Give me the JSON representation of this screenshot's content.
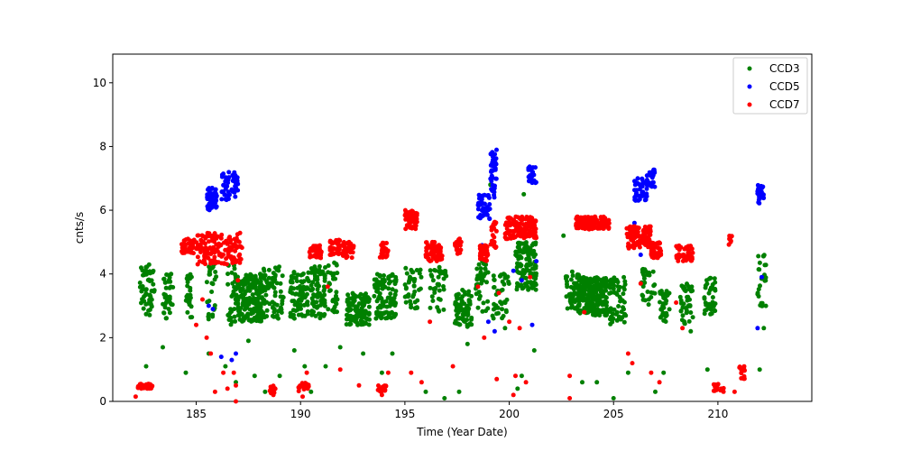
{
  "chart_data": {
    "type": "scatter",
    "title": "",
    "xlabel": "Time (Year Date)",
    "ylabel": "cnts/s",
    "xlim": [
      181,
      214.5
    ],
    "ylim": [
      0,
      10.9
    ],
    "xticks": [
      185,
      190,
      195,
      200,
      205,
      210
    ],
    "yticks": [
      0,
      2,
      4,
      6,
      8,
      10
    ],
    "grid": false,
    "legend_position": "top-right",
    "series": [
      {
        "name": "CCD3",
        "color": "#008000",
        "clusters": [
          {
            "x": [
              182.3,
              183.0
            ],
            "y": [
              2.7,
              4.3
            ],
            "n": 55
          },
          {
            "x": [
              183.4,
              183.9
            ],
            "y": [
              2.6,
              4.0
            ],
            "n": 35
          },
          {
            "x": [
              184.5,
              184.8
            ],
            "y": [
              2.6,
              4.0
            ],
            "n": 25
          },
          {
            "x": [
              185.5,
              186.0
            ],
            "y": [
              2.5,
              4.4
            ],
            "n": 25
          },
          {
            "x": [
              186.5,
              187.0
            ],
            "y": [
              2.4,
              4.3
            ],
            "n": 40
          },
          {
            "x": [
              187.0,
              188.2
            ],
            "y": [
              2.5,
              4.0
            ],
            "n": 180
          },
          {
            "x": [
              188.2,
              189.2
            ],
            "y": [
              2.6,
              4.3
            ],
            "n": 70
          },
          {
            "x": [
              189.5,
              190.4
            ],
            "y": [
              2.6,
              4.1
            ],
            "n": 80
          },
          {
            "x": [
              190.5,
              191.2
            ],
            "y": [
              2.6,
              4.3
            ],
            "n": 80
          },
          {
            "x": [
              191.3,
              191.8
            ],
            "y": [
              2.8,
              4.4
            ],
            "n": 30
          },
          {
            "x": [
              192.2,
              193.3
            ],
            "y": [
              2.4,
              3.4
            ],
            "n": 130
          },
          {
            "x": [
              193.5,
              194.6
            ],
            "y": [
              2.6,
              4.0
            ],
            "n": 110
          },
          {
            "x": [
              195.0,
              195.8
            ],
            "y": [
              2.9,
              4.2
            ],
            "n": 40
          },
          {
            "x": [
              196.2,
              197.0
            ],
            "y": [
              2.8,
              4.3
            ],
            "n": 40
          },
          {
            "x": [
              197.4,
              198.2
            ],
            "y": [
              2.3,
              3.5
            ],
            "n": 80
          },
          {
            "x": [
              198.4,
              199.0
            ],
            "y": [
              2.8,
              4.4
            ],
            "n": 40
          },
          {
            "x": [
              199.2,
              200.0
            ],
            "y": [
              2.6,
              4.0
            ],
            "n": 40
          },
          {
            "x": [
              200.3,
              201.3
            ],
            "y": [
              3.5,
              5.0
            ],
            "n": 120
          },
          {
            "x": [
              202.7,
              203.4
            ],
            "y": [
              2.8,
              4.1
            ],
            "n": 60
          },
          {
            "x": [
              203.3,
              204.7
            ],
            "y": [
              2.7,
              3.9
            ],
            "n": 220
          },
          {
            "x": [
              204.8,
              205.6
            ],
            "y": [
              2.4,
              3.9
            ],
            "n": 60
          },
          {
            "x": [
              206.3,
              207.0
            ],
            "y": [
              3.0,
              4.2
            ],
            "n": 30
          },
          {
            "x": [
              207.2,
              207.7
            ],
            "y": [
              2.5,
              3.5
            ],
            "n": 35
          },
          {
            "x": [
              208.2,
              208.8
            ],
            "y": [
              2.4,
              3.7
            ],
            "n": 40
          },
          {
            "x": [
              209.3,
              209.9
            ],
            "y": [
              2.7,
              3.9
            ],
            "n": 40
          },
          {
            "x": [
              211.9,
              212.3
            ],
            "y": [
              2.9,
              4.6
            ],
            "n": 25
          }
        ],
        "points": [
          [
            182.6,
            1.1
          ],
          [
            183.4,
            1.7
          ],
          [
            184.5,
            0.9
          ],
          [
            185.6,
            1.5
          ],
          [
            186.4,
            1.1
          ],
          [
            186.9,
            0.6
          ],
          [
            187.5,
            1.9
          ],
          [
            187.8,
            0.8
          ],
          [
            188.3,
            0.3
          ],
          [
            189.0,
            0.8
          ],
          [
            189.7,
            1.6
          ],
          [
            190.2,
            1.1
          ],
          [
            190.5,
            0.3
          ],
          [
            191.2,
            1.1
          ],
          [
            191.9,
            1.7
          ],
          [
            193.0,
            1.5
          ],
          [
            193.9,
            0.9
          ],
          [
            194.4,
            1.5
          ],
          [
            196.0,
            0.3
          ],
          [
            196.9,
            0.1
          ],
          [
            197.6,
            0.3
          ],
          [
            198.0,
            1.8
          ],
          [
            199.8,
            2.3
          ],
          [
            200.4,
            0.4
          ],
          [
            200.6,
            0.8
          ],
          [
            201.2,
            1.6
          ],
          [
            203.5,
            0.6
          ],
          [
            204.2,
            0.6
          ],
          [
            205.0,
            0.1
          ],
          [
            205.7,
            0.9
          ],
          [
            207.0,
            0.3
          ],
          [
            207.4,
            0.9
          ],
          [
            208.7,
            2.2
          ],
          [
            209.5,
            1.0
          ],
          [
            212.0,
            1.0
          ],
          [
            212.2,
            2.3
          ],
          [
            199.1,
            6.8
          ],
          [
            200.7,
            6.5
          ],
          [
            202.6,
            5.2
          ],
          [
            198.9,
            4.8
          ]
        ]
      },
      {
        "name": "CCD5",
        "color": "#0000ff",
        "clusters": [
          {
            "x": [
              185.5,
              186.0
            ],
            "y": [
              6.0,
              6.7
            ],
            "n": 40
          },
          {
            "x": [
              186.2,
              186.6
            ],
            "y": [
              6.3,
              7.2
            ],
            "n": 30
          },
          {
            "x": [
              186.7,
              187.0
            ],
            "y": [
              6.4,
              7.2
            ],
            "n": 25
          },
          {
            "x": [
              198.5,
              199.1
            ],
            "y": [
              5.7,
              6.5
            ],
            "n": 40
          },
          {
            "x": [
              199.1,
              199.4
            ],
            "y": [
              6.4,
              8.0
            ],
            "n": 40
          },
          {
            "x": [
              200.9,
              201.3
            ],
            "y": [
              6.8,
              7.4
            ],
            "n": 25
          },
          {
            "x": [
              206.0,
              206.6
            ],
            "y": [
              6.3,
              7.0
            ],
            "n": 40
          },
          {
            "x": [
              206.6,
              207.0
            ],
            "y": [
              6.7,
              7.3
            ],
            "n": 30
          },
          {
            "x": [
              211.9,
              212.2
            ],
            "y": [
              6.2,
              6.8
            ],
            "n": 25
          }
        ],
        "points": [
          [
            185.6,
            3.0
          ],
          [
            185.8,
            2.9
          ],
          [
            186.2,
            1.4
          ],
          [
            186.7,
            1.3
          ],
          [
            186.9,
            1.5
          ],
          [
            198.7,
            4.9
          ],
          [
            199.0,
            2.5
          ],
          [
            199.3,
            2.2
          ],
          [
            200.2,
            4.1
          ],
          [
            200.6,
            3.8
          ],
          [
            201.1,
            2.4
          ],
          [
            201.3,
            4.4
          ],
          [
            206.0,
            5.6
          ],
          [
            206.3,
            4.6
          ],
          [
            211.9,
            2.3
          ],
          [
            212.1,
            3.9
          ]
        ]
      },
      {
        "name": "CCD7",
        "color": "#ff0000",
        "clusters": [
          {
            "x": [
              182.2,
              182.9
            ],
            "y": [
              0.4,
              0.55
            ],
            "n": 30
          },
          {
            "x": [
              184.3,
              184.9
            ],
            "y": [
              4.6,
              5.1
            ],
            "n": 40
          },
          {
            "x": [
              185.0,
              187.2
            ],
            "y": [
              4.3,
              5.3
            ],
            "n": 140
          },
          {
            "x": [
              188.5,
              188.8
            ],
            "y": [
              0.25,
              0.5
            ],
            "n": 15
          },
          {
            "x": [
              189.9,
              190.4
            ],
            "y": [
              0.3,
              0.6
            ],
            "n": 15
          },
          {
            "x": [
              190.4,
              191.0
            ],
            "y": [
              4.5,
              4.9
            ],
            "n": 40
          },
          {
            "x": [
              191.4,
              191.9
            ],
            "y": [
              4.6,
              5.1
            ],
            "n": 40
          },
          {
            "x": [
              192.0,
              192.6
            ],
            "y": [
              4.5,
              5.0
            ],
            "n": 40
          },
          {
            "x": [
              193.7,
              194.1
            ],
            "y": [
              0.3,
              0.5
            ],
            "n": 15
          },
          {
            "x": [
              193.8,
              194.2
            ],
            "y": [
              4.5,
              5.0
            ],
            "n": 25
          },
          {
            "x": [
              195.0,
              195.6
            ],
            "y": [
              5.4,
              6.0
            ],
            "n": 50
          },
          {
            "x": [
              196.0,
              196.8
            ],
            "y": [
              4.4,
              5.0
            ],
            "n": 60
          },
          {
            "x": [
              197.4,
              197.7
            ],
            "y": [
              4.6,
              5.2
            ],
            "n": 20
          },
          {
            "x": [
              198.6,
              199.0
            ],
            "y": [
              4.4,
              4.9
            ],
            "n": 35
          },
          {
            "x": [
              199.1,
              199.4
            ],
            "y": [
              4.8,
              5.7
            ],
            "n": 25
          },
          {
            "x": [
              199.8,
              201.3
            ],
            "y": [
              5.1,
              5.8
            ],
            "n": 120
          },
          {
            "x": [
              203.2,
              204.8
            ],
            "y": [
              5.4,
              5.8
            ],
            "n": 120
          },
          {
            "x": [
              205.6,
              206.8
            ],
            "y": [
              4.8,
              5.5
            ],
            "n": 100
          },
          {
            "x": [
              206.8,
              207.3
            ],
            "y": [
              4.5,
              5.0
            ],
            "n": 40
          },
          {
            "x": [
              208.0,
              208.8
            ],
            "y": [
              4.4,
              4.9
            ],
            "n": 45
          },
          {
            "x": [
              209.8,
              210.3
            ],
            "y": [
              0.3,
              0.55
            ],
            "n": 20
          },
          {
            "x": [
              210.5,
              210.7
            ],
            "y": [
              4.9,
              5.2
            ],
            "n": 10
          },
          {
            "x": [
              211.0,
              211.3
            ],
            "y": [
              0.7,
              1.1
            ],
            "n": 15
          }
        ],
        "points": [
          [
            182.1,
            0.15
          ],
          [
            185.0,
            2.4
          ],
          [
            185.3,
            3.2
          ],
          [
            185.5,
            2.0
          ],
          [
            185.7,
            1.5
          ],
          [
            185.9,
            0.3
          ],
          [
            186.3,
            0.9
          ],
          [
            186.5,
            0.4
          ],
          [
            186.8,
            0.9
          ],
          [
            186.9,
            0.0
          ],
          [
            186.9,
            0.5
          ],
          [
            187.0,
            3.8
          ],
          [
            188.7,
            0.2
          ],
          [
            190.1,
            0.15
          ],
          [
            190.3,
            0.9
          ],
          [
            191.3,
            3.6
          ],
          [
            191.9,
            1.0
          ],
          [
            192.8,
            0.5
          ],
          [
            193.9,
            0.2
          ],
          [
            194.2,
            0.9
          ],
          [
            195.3,
            0.9
          ],
          [
            195.8,
            0.6
          ],
          [
            196.0,
            4.6
          ],
          [
            196.2,
            2.5
          ],
          [
            197.3,
            1.1
          ],
          [
            198.5,
            3.6
          ],
          [
            198.8,
            2.0
          ],
          [
            199.4,
            0.7
          ],
          [
            199.5,
            3.4
          ],
          [
            200.0,
            2.5
          ],
          [
            200.2,
            0.2
          ],
          [
            200.3,
            0.8
          ],
          [
            200.5,
            2.3
          ],
          [
            200.8,
            0.6
          ],
          [
            201.0,
            3.9
          ],
          [
            202.9,
            0.1
          ],
          [
            202.9,
            0.8
          ],
          [
            203.6,
            2.8
          ],
          [
            205.7,
            1.5
          ],
          [
            205.9,
            1.2
          ],
          [
            206.3,
            3.7
          ],
          [
            206.8,
            0.9
          ],
          [
            207.2,
            0.6
          ],
          [
            208.0,
            3.1
          ],
          [
            208.3,
            2.3
          ],
          [
            210.8,
            0.3
          ]
        ]
      }
    ]
  }
}
